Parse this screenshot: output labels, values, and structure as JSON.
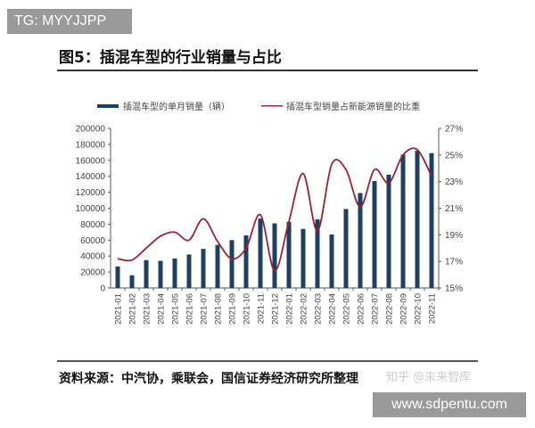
{
  "watermark_tag": "TG: MYYJJPP",
  "site_tag": "www.sdpentu.com",
  "title": "图5：插混车型的行业销量与占比",
  "source": "资料来源：中汽协，乘联会，国信证券经济研究所整理",
  "platform_watermark": "知乎 @未来智库",
  "chart_data": {
    "type": "bar+line",
    "title": "图5：插混车型的行业销量与占比",
    "categories": [
      "2021-01",
      "2021-02",
      "2021-03",
      "2021-04",
      "2021-05",
      "2021-06",
      "2021-07",
      "2021-08",
      "2021-09",
      "2021-10",
      "2021-11",
      "2021-12",
      "2022-01",
      "2022-02",
      "2022-03",
      "2022-04",
      "2022-05",
      "2022-06",
      "2022-07",
      "2022-08",
      "2022-09",
      "2022-10",
      "2022-11"
    ],
    "series": [
      {
        "name": "插混车型的单月销量（辆）",
        "type": "bar",
        "axis": "left",
        "color": "#1b3f66",
        "values": [
          27000,
          16000,
          35000,
          34000,
          37000,
          42000,
          49000,
          54000,
          60000,
          66000,
          87000,
          81000,
          83000,
          74000,
          86000,
          67000,
          99000,
          119000,
          134000,
          142000,
          167000,
          172000,
          169000
        ]
      },
      {
        "name": "插混车型销量占新能源销量的比重",
        "type": "line",
        "axis": "right",
        "color": "#9b2335",
        "values": [
          17.2,
          17.1,
          18.0,
          18.9,
          19.2,
          18.6,
          20.2,
          18.5,
          17.2,
          18.0,
          20.5,
          16.3,
          20.0,
          23.6,
          19.3,
          24.3,
          23.9,
          21.1,
          23.9,
          22.9,
          25.0,
          25.4,
          23.4
        ]
      }
    ],
    "left_axis": {
      "ylim": [
        0,
        200000
      ],
      "ticks": [
        "0",
        "20000",
        "40000",
        "60000",
        "80000",
        "100000",
        "120000",
        "140000",
        "160000",
        "180000",
        "200000"
      ]
    },
    "right_axis": {
      "ylim": [
        15,
        27
      ],
      "ticks": [
        "15%",
        "17%",
        "19%",
        "21%",
        "23%",
        "25%",
        "27%"
      ]
    },
    "legend": "top-center"
  }
}
